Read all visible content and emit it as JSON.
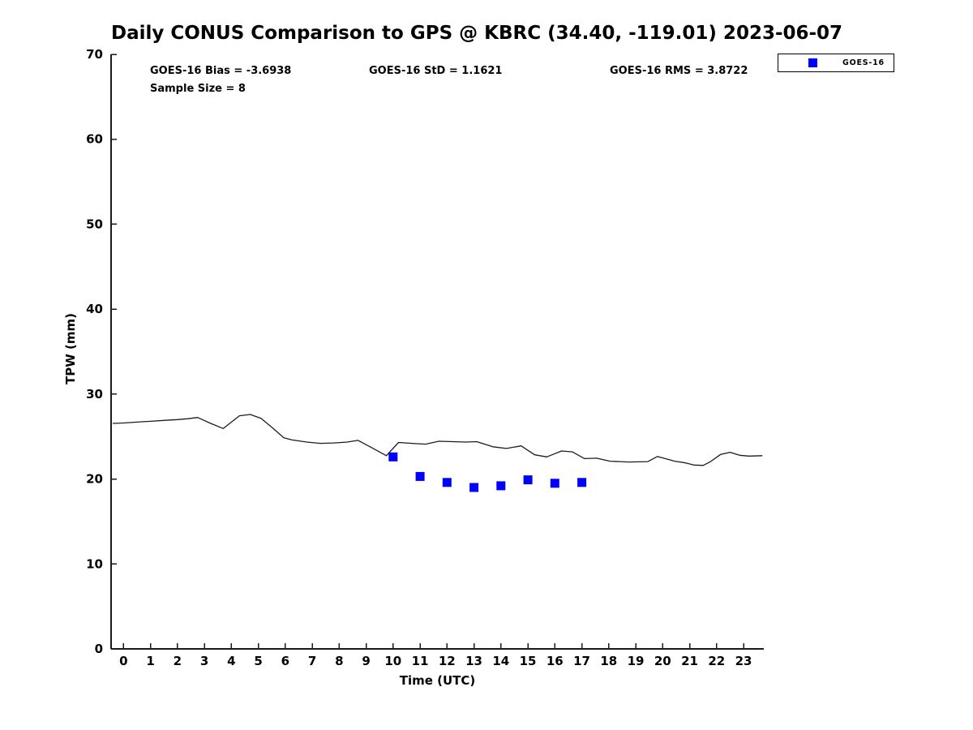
{
  "title": "Daily CONUS Comparison to GPS @ KBRC (34.40, -119.01) 2023-06-07",
  "stats": {
    "bias": "GOES-16 Bias = -3.6938",
    "std": "GOES-16 StD = 1.1621",
    "rms": "GOES-16 RMS = 3.8722",
    "sample_size": "Sample Size = 8"
  },
  "legend": {
    "label": "GOES-16",
    "marker_color": "#0000ff"
  },
  "axes": {
    "xlabel": "Time (UTC)",
    "ylabel": "TPW (mm)"
  },
  "colors": {
    "line": "#1c1c1c",
    "scatter": "#0000ff",
    "axis": "#1a1a1a",
    "background": "#ffffff"
  },
  "chart_data": {
    "type": "line",
    "title": "Daily CONUS Comparison to GPS @ KBRC (34.40, -119.01) 2023-06-07",
    "xlabel": "Time (UTC)",
    "ylabel": "TPW (mm)",
    "xlim": [
      -0.46,
      23.75
    ],
    "ylim": [
      0,
      70
    ],
    "x_ticks": [
      0,
      1,
      2,
      3,
      4,
      5,
      6,
      7,
      8,
      9,
      10,
      11,
      12,
      13,
      14,
      15,
      16,
      17,
      18,
      19,
      20,
      21,
      22,
      23
    ],
    "y_ticks": [
      0,
      10,
      20,
      30,
      40,
      50,
      60,
      70
    ],
    "grid": false,
    "legend_position": "top-right",
    "annotations": [
      "GOES-16 Bias = -3.6938",
      "GOES-16 StD = 1.1621",
      "GOES-16 RMS = 3.8722",
      "Sample Size = 8"
    ],
    "series": [
      {
        "name": "GPS",
        "type": "line",
        "color": "#1c1c1c",
        "points": [
          [
            -0.4,
            26.55
          ],
          [
            0,
            26.6
          ],
          [
            0.5,
            26.7
          ],
          [
            1,
            26.8
          ],
          [
            1.5,
            26.9
          ],
          [
            2,
            27.0
          ],
          [
            2.4,
            27.1
          ],
          [
            2.75,
            27.25
          ],
          [
            3.2,
            26.6
          ],
          [
            3.7,
            25.95
          ],
          [
            4.3,
            27.45
          ],
          [
            4.7,
            27.6
          ],
          [
            5.1,
            27.15
          ],
          [
            5.5,
            26.1
          ],
          [
            5.95,
            24.85
          ],
          [
            6.25,
            24.6
          ],
          [
            6.8,
            24.35
          ],
          [
            7.3,
            24.2
          ],
          [
            7.8,
            24.25
          ],
          [
            8.3,
            24.35
          ],
          [
            8.7,
            24.55
          ],
          [
            9.2,
            23.7
          ],
          [
            9.75,
            22.75
          ],
          [
            10.2,
            24.3
          ],
          [
            10.7,
            24.2
          ],
          [
            11.2,
            24.1
          ],
          [
            11.7,
            24.45
          ],
          [
            12.2,
            24.4
          ],
          [
            12.7,
            24.35
          ],
          [
            13.1,
            24.4
          ],
          [
            13.7,
            23.8
          ],
          [
            14.2,
            23.6
          ],
          [
            14.75,
            23.9
          ],
          [
            15.25,
            22.85
          ],
          [
            15.7,
            22.6
          ],
          [
            16.25,
            23.3
          ],
          [
            16.65,
            23.2
          ],
          [
            17.1,
            22.4
          ],
          [
            17.55,
            22.45
          ],
          [
            18.05,
            22.1
          ],
          [
            18.75,
            22.0
          ],
          [
            19.45,
            22.05
          ],
          [
            19.8,
            22.65
          ],
          [
            20.45,
            22.1
          ],
          [
            20.85,
            21.9
          ],
          [
            21.15,
            21.65
          ],
          [
            21.5,
            21.6
          ],
          [
            21.75,
            22.0
          ],
          [
            22.15,
            22.9
          ],
          [
            22.5,
            23.15
          ],
          [
            22.85,
            22.8
          ],
          [
            23.2,
            22.7
          ],
          [
            23.7,
            22.75
          ]
        ]
      },
      {
        "name": "GOES-16",
        "type": "scatter",
        "marker": "square",
        "marker_size": 11,
        "color": "#0000ff",
        "x": [
          10,
          11,
          12,
          13,
          14,
          15,
          16,
          17
        ],
        "y": [
          22.6,
          20.3,
          19.6,
          19.0,
          19.2,
          19.9,
          19.5,
          19.6
        ]
      }
    ]
  }
}
